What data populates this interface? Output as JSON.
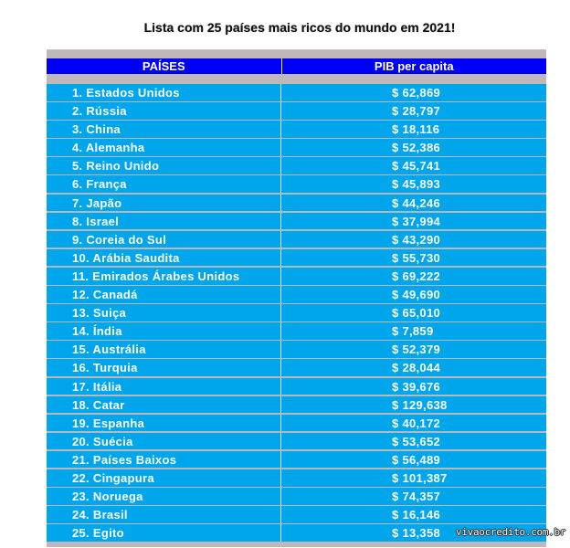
{
  "title": "Lista com 25 países mais ricos do mundo em 2021!",
  "colors": {
    "header_bg": "#0000f8",
    "row_bg": "#00a6ec",
    "band_gray": "#c0b8b8",
    "text": "#ffffff"
  },
  "table": {
    "headers": [
      "PAÍSES",
      "PIB per capita"
    ],
    "rows": [
      {
        "country": "1. Estados Unidos",
        "gdp": "$ 62,869"
      },
      {
        "country": "2. Rússia",
        "gdp": "$ 28,797"
      },
      {
        "country": "3. China",
        "gdp": "$ 18,116"
      },
      {
        "country": "4. Alemanha",
        "gdp": "$ 52,386"
      },
      {
        "country": "5. Reino Unido",
        "gdp": "$ 45,741"
      },
      {
        "country": "6. França",
        "gdp": "$ 45,893"
      },
      {
        "country": "7. Japão",
        "gdp": "$ 44,246"
      },
      {
        "country": "8. Israel",
        "gdp": "$ 37,994"
      },
      {
        "country": "9. Coreia do Sul",
        "gdp": "$ 43,290"
      },
      {
        "country": "10. Arábia Saudita",
        "gdp": "$ 55,730"
      },
      {
        "country": "11. Emirados Árabes Unidos",
        "gdp": "$ 69,222"
      },
      {
        "country": "12. Canadá",
        "gdp": "$ 49,690"
      },
      {
        "country": "13. Suiça",
        "gdp": "$ 65,010"
      },
      {
        "country": "14. Índia",
        "gdp": "$ 7,859"
      },
      {
        "country": "15. Austrália",
        "gdp": "$ 52,379"
      },
      {
        "country": "16. Turquia",
        "gdp": "$ 28,044"
      },
      {
        "country": "17. Itália",
        "gdp": "$ 39,676"
      },
      {
        "country": "18. Catar",
        "gdp": "$ 129,638"
      },
      {
        "country": "19. Espanha",
        "gdp": "$ 40,172"
      },
      {
        "country": "20. Suécia",
        "gdp": "$ 53,652"
      },
      {
        "country": "21. Países Baixos",
        "gdp": "$ 56,489"
      },
      {
        "country": "22. Cingapura",
        "gdp": "$ 101,387"
      },
      {
        "country": "23. Noruega",
        "gdp": "$ 74,357"
      },
      {
        "country": "24. Brasil",
        "gdp": "$ 16,146"
      },
      {
        "country": "25. Egito",
        "gdp": "$ 13,358"
      }
    ]
  },
  "watermark": "vivaocredito.com.br"
}
